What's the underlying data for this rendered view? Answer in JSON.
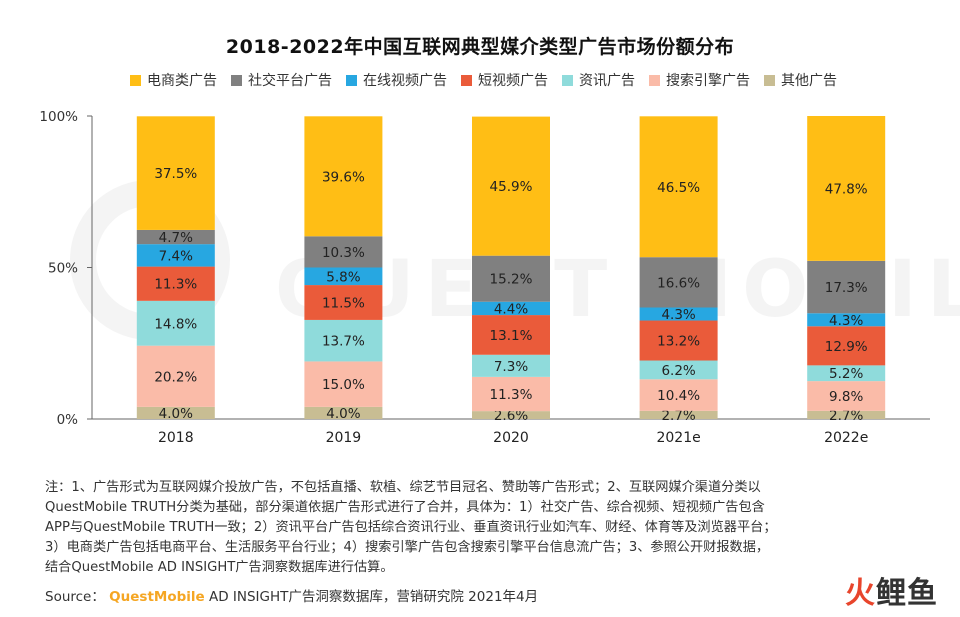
{
  "title": "2018-2022年中国互联网典型媒介类型广告市场份额分布",
  "legend": [
    {
      "label": "电商类广告",
      "color": "#FFBE15"
    },
    {
      "label": "社交平台广告",
      "color": "#808080"
    },
    {
      "label": "在线视频广告",
      "color": "#27A7E1"
    },
    {
      "label": "短视频广告",
      "color": "#EA5B3A"
    },
    {
      "label": "资讯广告",
      "color": "#8FDBDB"
    },
    {
      "label": "搜索引擎广告",
      "color": "#FABBA8"
    },
    {
      "label": "其他广告",
      "color": "#C8BD93"
    }
  ],
  "chart_data": {
    "type": "bar",
    "stacked": true,
    "title": "2018-2022年中国互联网典型媒介类型广告市场份额分布",
    "categories": [
      "2018",
      "2019",
      "2020",
      "2021e",
      "2022e"
    ],
    "ylim": [
      0,
      100
    ],
    "y_ticks": [
      "0%",
      "50%",
      "100%"
    ],
    "y_tick_values": [
      0,
      50,
      100
    ],
    "legend_position": "top",
    "series": [
      {
        "name": "其他广告",
        "color": "#C8BD93",
        "values": [
          4.0,
          4.0,
          2.6,
          2.7,
          2.7
        ],
        "labels": [
          "4.0%",
          "4.0%",
          "2.6%",
          "2.7%",
          "2.7%"
        ]
      },
      {
        "name": "搜索引擎广告",
        "color": "#FABBA8",
        "values": [
          20.2,
          15.0,
          11.3,
          10.4,
          9.8
        ],
        "labels": [
          "20.2%",
          "15.0%",
          "11.3%",
          "10.4%",
          "9.8%"
        ]
      },
      {
        "name": "资讯广告",
        "color": "#8FDBDB",
        "values": [
          14.8,
          13.7,
          7.3,
          6.2,
          5.2
        ],
        "labels": [
          "14.8%",
          "13.7%",
          "7.3%",
          "6.2%",
          "5.2%"
        ]
      },
      {
        "name": "短视频广告",
        "color": "#EA5B3A",
        "values": [
          11.3,
          11.5,
          13.1,
          13.2,
          12.9
        ],
        "labels": [
          "11.3%",
          "11.5%",
          "13.1%",
          "13.2%",
          "12.9%"
        ]
      },
      {
        "name": "在线视频广告",
        "color": "#27A7E1",
        "values": [
          7.4,
          5.8,
          4.4,
          4.3,
          4.3
        ],
        "labels": [
          "7.4%",
          "5.8%",
          "4.4%",
          "4.3%",
          "4.3%"
        ]
      },
      {
        "name": "社交平台广告",
        "color": "#808080",
        "values": [
          4.7,
          10.3,
          15.2,
          16.6,
          17.3
        ],
        "labels": [
          "4.7%",
          "10.3%",
          "15.2%",
          "16.6%",
          "17.3%"
        ]
      },
      {
        "name": "电商类广告",
        "color": "#FFBE15",
        "values": [
          37.5,
          39.6,
          45.9,
          46.5,
          47.8
        ],
        "labels": [
          "37.5%",
          "39.6%",
          "45.9%",
          "46.5%",
          "47.8%"
        ]
      }
    ]
  },
  "notes": [
    "注：1、广告形式为互联网媒介投放广告，不包括直播、软植、综艺节目冠名、赞助等广告形式；2、互联网媒介渠道分类以",
    "QuestMobile TRUTH分类为基础，部分渠道依据广告形式进行了合并，具体为：1）社交广告、综合视频、短视频广告包含",
    "APP与QuestMobile TRUTH一致；2）资讯平台广告包括综合资讯行业、垂直资讯行业如汽车、财经、体育等及浏览器平台；",
    "3）电商类广告包括电商平台、生活服务平台行业；4）搜索引擎广告包含搜索引擎平台信息流广告；3、参照公开财报数据，",
    "结合QuestMobile AD INSIGHT广告洞察数据库进行估算。"
  ],
  "source": {
    "prefix": "Source：",
    "brand": "QuestMobile",
    "text": "AD INSIGHT广告洞察数据库，营销研究院 2021年4月"
  },
  "watermark": {
    "text": "QUEST MOBILE"
  },
  "logo": {
    "chars": [
      "火",
      "鲤",
      "鱼"
    ],
    "colors": [
      "#E8452C",
      "#333333",
      "#333333"
    ]
  }
}
